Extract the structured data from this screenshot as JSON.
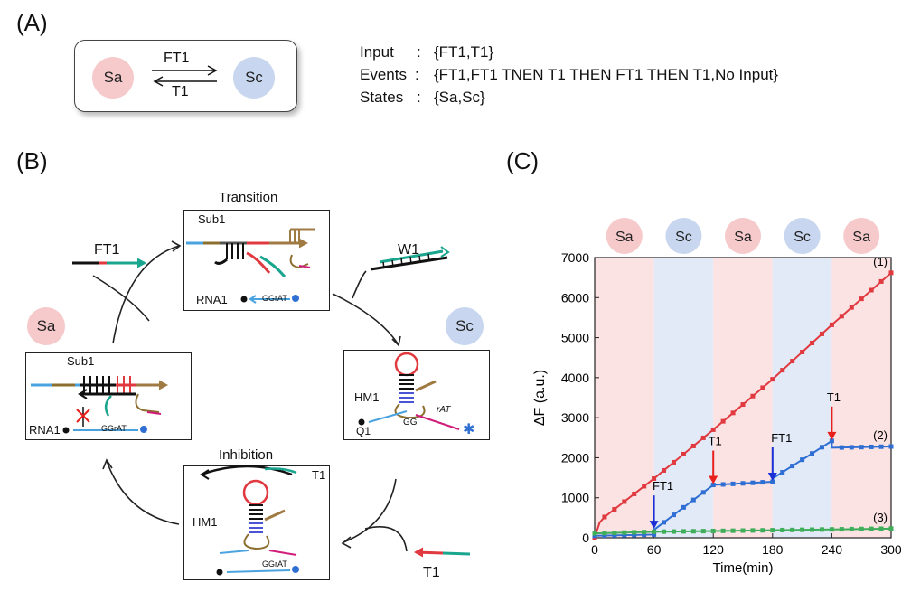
{
  "panels": {
    "a": "(A)",
    "b": "(B)",
    "c": "(C)"
  },
  "panel_a": {
    "state1": "Sa",
    "state2": "Sc",
    "forward_label": "FT1",
    "backward_label": "T1",
    "input_key": "Input",
    "input_value": "{FT1,T1}",
    "events_key": "Events",
    "events_value": "{FT1,FT1 TNEN T1 THEN FT1 THEN T1,No Input}",
    "states_key": "States",
    "states_value": "{Sa,Sc}",
    "colon": ":"
  },
  "panel_b": {
    "transition_title": "Transition",
    "inhibition_title": "Inhibition",
    "ft1": "FT1",
    "w1": "W1",
    "t1": "T1",
    "state_sa": "Sa",
    "state_sc": "Sc",
    "sub1": "Sub1",
    "rna1": "RNA1",
    "hm1": "HM1",
    "q1": "Q1",
    "ggrat": "GGrAT",
    "gg": "GG",
    "rat": "rAT",
    "t1_small": "T1"
  },
  "colors": {
    "sa_fill": "#f6c9cb",
    "sc_fill": "#c8d7ef",
    "series1": "#e0393f",
    "series2": "#2f6fd4",
    "series3": "#3fae5a",
    "arrow_red": "#e8201c",
    "arrow_blue": "#1a2fd6"
  },
  "chart_data": {
    "type": "line",
    "xlabel": "Time(min)",
    "ylabel": "ΔF  (a.u.)",
    "xlim": [
      0,
      300
    ],
    "ylim": [
      0,
      7000
    ],
    "xticks": [
      0,
      60,
      120,
      180,
      240,
      300
    ],
    "yticks": [
      0,
      1000,
      2000,
      3000,
      4000,
      5000,
      6000,
      7000
    ],
    "state_bands": [
      {
        "label": "Sa",
        "from": 0,
        "to": 60
      },
      {
        "label": "Sc",
        "from": 60,
        "to": 120
      },
      {
        "label": "Sa",
        "from": 120,
        "to": 180
      },
      {
        "label": "Sc",
        "from": 180,
        "to": 240
      },
      {
        "label": "Sa",
        "from": 240,
        "to": 300
      }
    ],
    "series": [
      {
        "name": "(1)",
        "points": [
          [
            0,
            0
          ],
          [
            5,
            380
          ],
          [
            10,
            520
          ],
          [
            60,
            1480
          ],
          [
            120,
            2700
          ],
          [
            180,
            3960
          ],
          [
            240,
            5320
          ],
          [
            300,
            6620
          ]
        ]
      },
      {
        "name": "(2)",
        "points": [
          [
            0,
            50
          ],
          [
            60,
            80
          ],
          [
            60,
            200
          ],
          [
            120,
            1320
          ],
          [
            180,
            1400
          ],
          [
            180,
            1480
          ],
          [
            240,
            2420
          ],
          [
            240,
            2250
          ],
          [
            300,
            2280
          ]
        ]
      },
      {
        "name": "(3)",
        "points": [
          [
            0,
            110
          ],
          [
            60,
            150
          ],
          [
            120,
            170
          ],
          [
            180,
            190
          ],
          [
            240,
            210
          ],
          [
            300,
            230
          ]
        ]
      }
    ],
    "annotations": [
      {
        "label": "FT1",
        "x": 60,
        "y": 200,
        "color": "blue"
      },
      {
        "label": "T1",
        "x": 120,
        "y": 1320,
        "color": "red"
      },
      {
        "label": "FT1",
        "x": 180,
        "y": 1400,
        "color": "blue"
      },
      {
        "label": "T1",
        "x": 240,
        "y": 2420,
        "color": "red"
      }
    ]
  }
}
